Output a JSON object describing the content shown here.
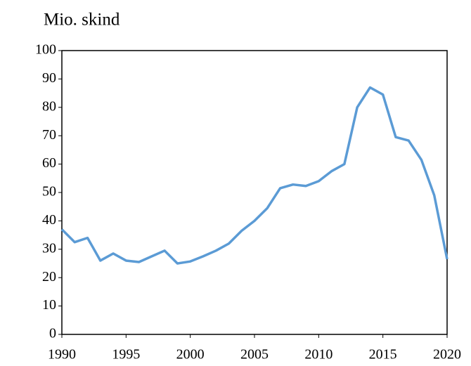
{
  "chart_data": {
    "type": "line",
    "ylabel": "Mio. skind",
    "x": [
      1990,
      1991,
      1992,
      1993,
      1994,
      1995,
      1996,
      1997,
      1998,
      1999,
      2000,
      2001,
      2002,
      2003,
      2004,
      2005,
      2006,
      2007,
      2008,
      2009,
      2010,
      2011,
      2012,
      2013,
      2014,
      2015,
      2016,
      2017,
      2018,
      2019,
      2020
    ],
    "series": [
      {
        "color": "#5b9bd5",
        "values": [
          37,
          32.5,
          34,
          26,
          28.5,
          26,
          25.5,
          27.5,
          29.5,
          25,
          25.7,
          27.5,
          29.5,
          32,
          36.5,
          40,
          44.5,
          51.5,
          52.8,
          52.3,
          54,
          57.5,
          60,
          80,
          87,
          84.5,
          69.5,
          68.3,
          61.5,
          49,
          26.5
        ]
      }
    ],
    "xlim": [
      1990,
      2020
    ],
    "xticks": [
      1990,
      1995,
      2000,
      2005,
      2010,
      2015,
      2020
    ],
    "ylim": [
      0,
      100
    ],
    "yticks": [
      0,
      10,
      20,
      30,
      40,
      50,
      60,
      70,
      80,
      90,
      100
    ],
    "grid": false
  }
}
